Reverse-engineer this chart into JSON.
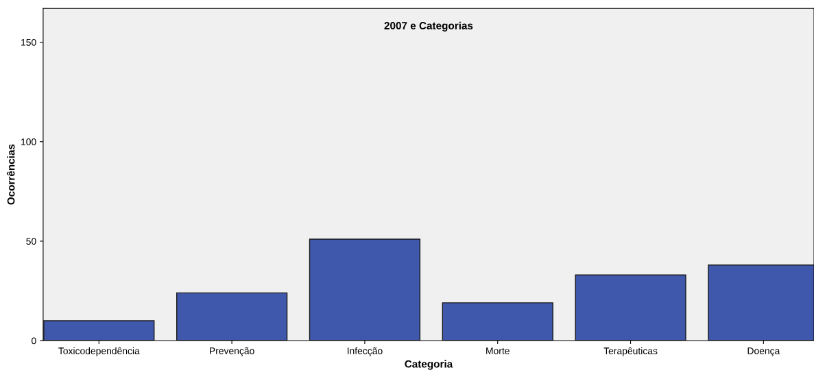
{
  "chart_data": {
    "type": "bar",
    "title": "2007 e Categorias",
    "xlabel": "Categoria",
    "ylabel": "Ocorrências",
    "categories": [
      "Toxicodependência",
      "Prevenção",
      "Infecção",
      "Morte",
      "Terapêuticas",
      "Doença"
    ],
    "values": [
      10,
      24,
      51,
      19,
      33,
      38
    ],
    "color": "#3f58ab",
    "ylim": [
      0,
      167
    ],
    "yticks": [
      0,
      50,
      100,
      150
    ],
    "grid": false,
    "legend": false
  }
}
